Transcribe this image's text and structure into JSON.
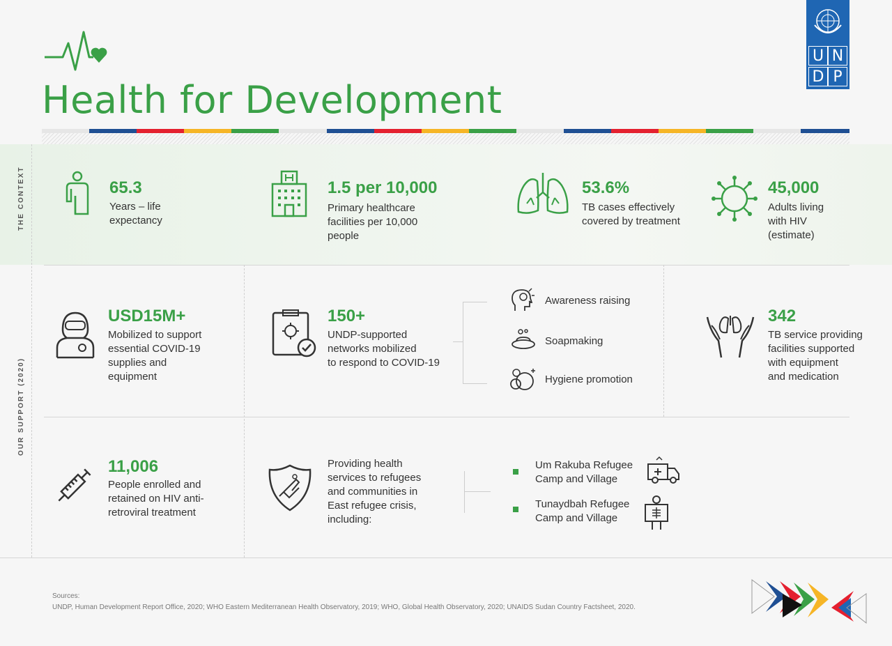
{
  "header": {
    "title": "Health for Development",
    "logo_letters": [
      "U",
      "N",
      "D",
      "P"
    ]
  },
  "colors": {
    "accent": "#3aa047",
    "undp_blue": "#1f66b3",
    "stripe_blue": "#1f4f93",
    "stripe_red": "#e4202f",
    "stripe_yellow": "#f6b526",
    "stripe_green": "#3aa047"
  },
  "context": {
    "label": "THE CONTEXT",
    "items": [
      {
        "icon": "person-icon",
        "value": "65.3",
        "lines": [
          "Years – life",
          "expectancy"
        ]
      },
      {
        "icon": "hospital-icon",
        "value": "1.5 per 10,000",
        "lines": [
          "Primary healthcare",
          "facilities per 10,000",
          "people"
        ]
      },
      {
        "icon": "lungs-icon",
        "value": "53.6%",
        "lines": [
          "TB cases effectively",
          "covered by treatment"
        ]
      },
      {
        "icon": "virus-icon",
        "value": "45,000",
        "lines": [
          "Adults living",
          "with HIV",
          "(estimate)"
        ]
      }
    ]
  },
  "support": {
    "label": "OUR SUPPORT (2020)",
    "covid": {
      "value": "USD15M+",
      "lines": [
        "Mobilized to support",
        "essential COVID-19",
        "supplies and",
        "equipment"
      ]
    },
    "networks": {
      "value": "150+",
      "lines": [
        "UNDP-supported",
        "networks mobilized",
        "to respond to COVID-19"
      ]
    },
    "activities": [
      "Awareness raising",
      "Soapmaking",
      "Hygiene promotion"
    ],
    "tb": {
      "value": "342",
      "lines": [
        "TB service providing",
        "facilities supported",
        "with equipment",
        "and medication"
      ]
    },
    "hiv": {
      "value": "11,006",
      "lines": [
        "People enrolled and",
        "retained on HIV anti-",
        "retroviral treatment"
      ]
    },
    "refugees": {
      "lines": [
        "Providing health",
        "services to refugees",
        "and communities in",
        "East refugee crisis,",
        "including:"
      ]
    },
    "camps": [
      {
        "lines": [
          "Um Rakuba Refugee",
          "Camp and Village"
        ]
      },
      {
        "lines": [
          "Tunaydbah Refugee",
          "Camp and Village"
        ]
      }
    ]
  },
  "footer": {
    "sources_label": "Sources:",
    "sources_text": "UNDP, Human Development Report Office, 2020; WHO Eastern Mediterranean Health Observatory, 2019; WHO, Global Health Observatory, 2020; UNAIDS Sudan Country Factsheet, 2020."
  }
}
